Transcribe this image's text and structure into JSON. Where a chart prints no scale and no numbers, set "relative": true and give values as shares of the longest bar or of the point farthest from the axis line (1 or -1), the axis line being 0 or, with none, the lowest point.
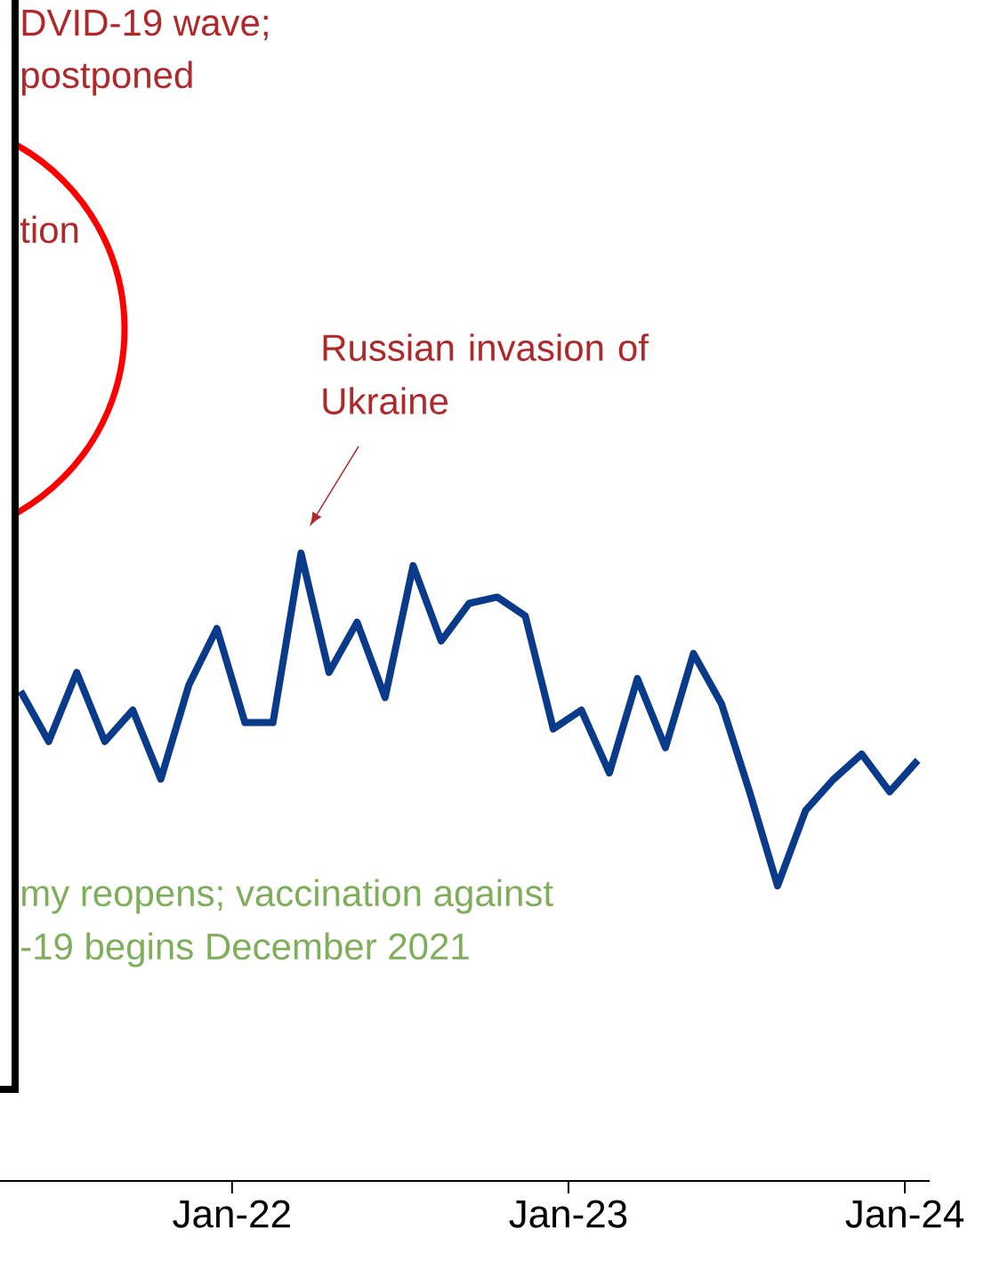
{
  "chart_data": {
    "type": "line",
    "relative": true,
    "color": "#0a3a8a",
    "x": [
      "2021-05-15",
      "2021-06-15",
      "2021-07-15",
      "2021-08-15",
      "2021-09-15",
      "2021-10-15",
      "2021-11-15",
      "2021-12-15",
      "2022-01-15",
      "2022-02-15",
      "2022-03-15",
      "2022-04-15",
      "2022-05-15",
      "2022-06-15",
      "2022-07-15",
      "2022-08-15",
      "2022-09-15",
      "2022-10-15",
      "2022-11-15",
      "2022-12-15",
      "2023-01-15",
      "2023-02-15",
      "2023-03-15",
      "2023-04-15",
      "2023-05-15",
      "2023-06-15",
      "2023-07-15",
      "2023-08-15",
      "2023-09-15",
      "2023-10-15",
      "2023-11-15",
      "2023-12-15",
      "2024-01-15"
    ],
    "values": [
      0.78,
      0.7,
      0.81,
      0.7,
      0.75,
      0.64,
      0.79,
      0.88,
      0.73,
      0.73,
      1,
      0.81,
      0.89,
      0.77,
      0.98,
      0.86,
      0.92,
      0.93,
      0.9,
      0.72,
      0.75,
      0.65,
      0.8,
      0.69,
      0.84,
      0.76,
      0.62,
      0.47,
      0.59,
      0.64,
      0.68,
      0.62,
      0.67
    ],
    "xlim": [
      "2021-04-23",
      "2024-01-28"
    ],
    "xticks": [
      {
        "value": "2022-01-01",
        "label": "Jan-22"
      },
      {
        "value": "2023-01-01",
        "label": "Jan-23"
      },
      {
        "value": "2024-01-01",
        "label": "Jan-24"
      }
    ],
    "annotations": [
      "DVID-19 wave;",
      "postponed",
      "tion",
      "Russian invasion of Ukraine",
      "my reopens; vaccination against",
      "-19 begins December 2021"
    ]
  }
}
